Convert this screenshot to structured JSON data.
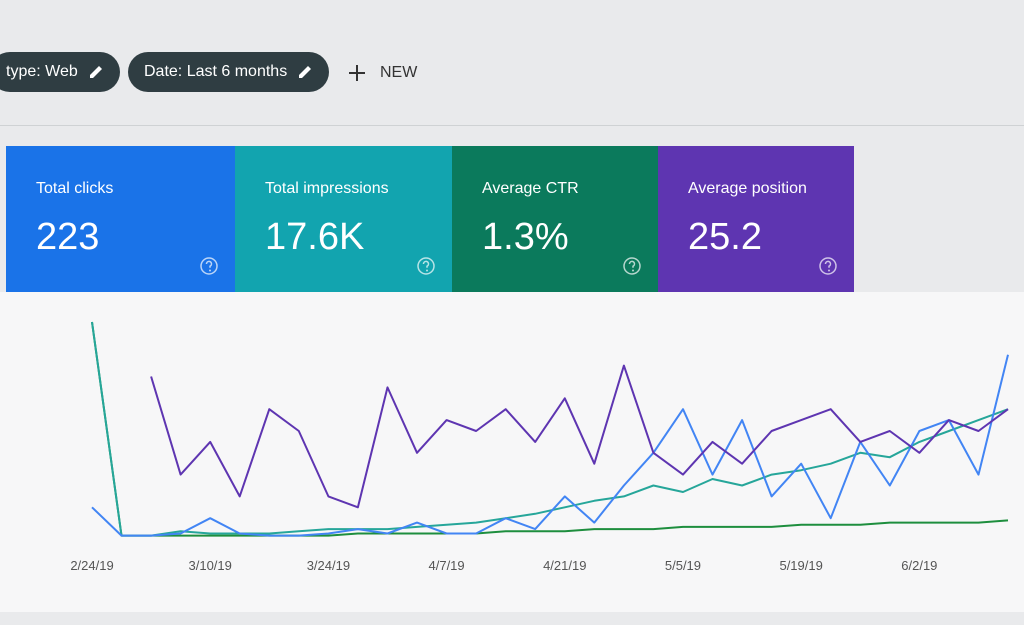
{
  "filters": [
    {
      "label": "type: Web"
    },
    {
      "label": "Date: Last 6 months"
    }
  ],
  "new_button": "NEW",
  "metrics": [
    {
      "label": "Total clicks",
      "value": "223",
      "color": "#1a73e8"
    },
    {
      "label": "Total impressions",
      "value": "17.6K",
      "color": "#12a4af"
    },
    {
      "label": "Average CTR",
      "value": "1.3%",
      "color": "#0b7a5c"
    },
    {
      "label": "Average position",
      "value": "25.2",
      "color": "#5e35b1"
    }
  ],
  "chart_data": {
    "type": "line",
    "categories": [
      "2/24/19",
      null,
      null,
      null,
      "3/10/19",
      null,
      null,
      null,
      "3/24/19",
      null,
      null,
      null,
      "4/7/19",
      null,
      null,
      null,
      "4/21/19",
      null,
      null,
      null,
      "5/5/19",
      null,
      null,
      null,
      "5/19/19",
      null,
      null,
      null,
      "6/2/19",
      null,
      null,
      null
    ],
    "ylim": [
      0,
      100
    ],
    "series": [
      {
        "color": "#5e35b1",
        "values": [
          null,
          null,
          75,
          30,
          45,
          20,
          60,
          50,
          20,
          15,
          70,
          40,
          55,
          50,
          60,
          45,
          65,
          35,
          80,
          40,
          30,
          45,
          35,
          50,
          55,
          60,
          45,
          50,
          40,
          55,
          50,
          60
        ]
      },
      {
        "color": "#4285f4",
        "values": [
          15,
          2,
          2,
          3,
          10,
          3,
          2,
          2,
          3,
          5,
          3,
          8,
          3,
          3,
          10,
          5,
          20,
          8,
          25,
          40,
          60,
          30,
          55,
          20,
          35,
          10,
          45,
          25,
          50,
          55,
          30,
          85
        ]
      },
      {
        "color": "#26a69a",
        "values": [
          100,
          2,
          2,
          4,
          3,
          3,
          3,
          4,
          5,
          5,
          5,
          6,
          7,
          8,
          10,
          12,
          15,
          18,
          20,
          25,
          22,
          28,
          25,
          30,
          32,
          35,
          40,
          38,
          45,
          50,
          55,
          60
        ]
      },
      {
        "color": "#1e8e3e",
        "values": [
          100,
          2,
          2,
          2,
          2,
          2,
          2,
          2,
          2,
          3,
          3,
          3,
          3,
          3,
          4,
          4,
          4,
          5,
          5,
          5,
          6,
          6,
          6,
          6,
          7,
          7,
          7,
          8,
          8,
          8,
          8,
          9
        ]
      }
    ]
  }
}
